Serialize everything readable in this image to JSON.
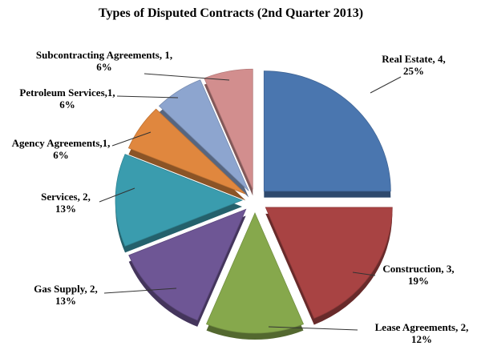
{
  "chart_data": {
    "type": "pie",
    "title": "Types of Disputed Contracts  (2nd Quarter 2013)",
    "exploded": true,
    "three_d": true,
    "slices": [
      {
        "name": "Real Estate",
        "value": 4,
        "percent": "25%",
        "color": "#4A76AF",
        "label_lines": [
          "Real Estate, 4,",
          "25%"
        ]
      },
      {
        "name": "Construction",
        "value": 3,
        "percent": "19%",
        "color": "#A84343",
        "label_lines": [
          "Construction, 3,",
          "19%"
        ]
      },
      {
        "name": "Lease Agreements",
        "value": 2,
        "percent": "12%",
        "color": "#86A84C",
        "label_lines": [
          "Lease Agreements, 2,",
          "12%"
        ]
      },
      {
        "name": "Gas Supply",
        "value": 2,
        "percent": "13%",
        "color": "#6E5695",
        "label_lines": [
          "Gas Supply, 2,",
          "13%"
        ]
      },
      {
        "name": "Services",
        "value": 2,
        "percent": "13%",
        "color": "#3A9CAE",
        "label_lines": [
          "Services, 2,",
          "13%"
        ]
      },
      {
        "name": "Agency Agreements",
        "value": 1,
        "percent": "6%",
        "color": "#E0873E",
        "label_lines": [
          "Agency Agreements,1,",
          "6%"
        ]
      },
      {
        "name": "Petroleum Services",
        "value": 1,
        "percent": "6%",
        "color": "#8DA5CF",
        "label_lines": [
          "Petroleum Services,1,",
          "6%"
        ]
      },
      {
        "name": "Subcontracting Agreements",
        "value": 1,
        "percent": "6%",
        "color": "#D28E8E",
        "label_lines": [
          "Subcontracting Agreements, 1,",
          "6%"
        ]
      }
    ]
  }
}
